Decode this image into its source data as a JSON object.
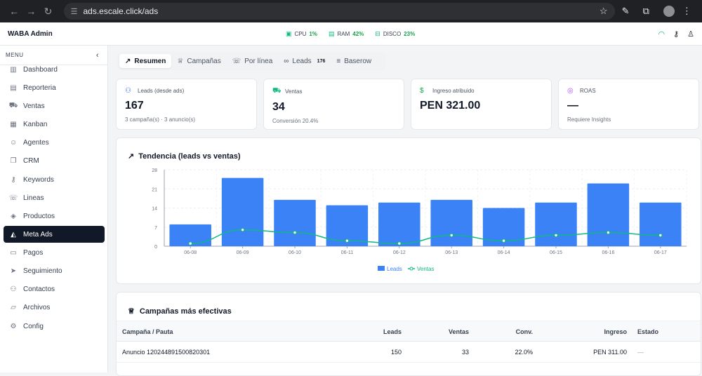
{
  "browser": {
    "url": "ads.escale.click/ads"
  },
  "app": {
    "title": "WABA Admin",
    "metrics": [
      {
        "label": "CPU",
        "value": "1%"
      },
      {
        "label": "RAM",
        "value": "42%"
      },
      {
        "label": "DISCO",
        "value": "23%"
      }
    ]
  },
  "sidebar": {
    "header": "MENU",
    "items": [
      {
        "label": "Dashboard",
        "icon": "bar-chart-icon",
        "glyph": "▥"
      },
      {
        "label": "Reporteria",
        "icon": "document-icon",
        "glyph": "▤"
      },
      {
        "label": "Ventas",
        "icon": "cart-icon",
        "glyph": "⛟"
      },
      {
        "label": "Kanban",
        "icon": "kanban-icon",
        "glyph": "▦"
      },
      {
        "label": "Agentes",
        "icon": "bot-icon",
        "glyph": "☺"
      },
      {
        "label": "CRM",
        "icon": "chat-icon",
        "glyph": "❐"
      },
      {
        "label": "Keywords",
        "icon": "key-icon",
        "glyph": "⚷"
      },
      {
        "label": "Lineas",
        "icon": "phone-icon",
        "glyph": "☏"
      },
      {
        "label": "Productos",
        "icon": "box-icon",
        "glyph": "◈"
      },
      {
        "label": "Meta Ads",
        "icon": "megaphone-icon",
        "glyph": "◭"
      },
      {
        "label": "Pagos",
        "icon": "card-icon",
        "glyph": "▭"
      },
      {
        "label": "Seguimiento",
        "icon": "send-icon",
        "glyph": "➤"
      },
      {
        "label": "Contactos",
        "icon": "users-icon",
        "glyph": "⚇"
      },
      {
        "label": "Archivos",
        "icon": "folder-icon",
        "glyph": "▱"
      },
      {
        "label": "Config",
        "icon": "gear-icon",
        "glyph": "⚙"
      }
    ],
    "active_index": 9
  },
  "tabs": [
    {
      "label": "Resumen",
      "icon": "trending-icon",
      "glyph": "↗"
    },
    {
      "label": "Campañas",
      "icon": "trophy-icon",
      "glyph": "♕"
    },
    {
      "label": "Por línea",
      "icon": "phone-icon",
      "glyph": "☏"
    },
    {
      "label": "Leads",
      "icon": "link-icon",
      "glyph": "∞",
      "count": "176"
    },
    {
      "label": "Baserow",
      "icon": "database-icon",
      "glyph": "≡"
    }
  ],
  "kpis": [
    {
      "label": "Leads (desde ads)",
      "value": "167",
      "sub": "3 campaña(s) · 3 anuncio(s)",
      "icon": "users-icon",
      "glyph": "⚇"
    },
    {
      "label": "Ventas",
      "value": "34",
      "sub": "Conversión 20.4%",
      "icon": "cart-icon",
      "glyph": "⛟"
    },
    {
      "label": "Ingreso atribuido",
      "value": "PEN 321.00",
      "sub": "",
      "icon": "dollar-icon",
      "glyph": "$"
    },
    {
      "label": "ROAS",
      "value": "—",
      "sub": "Requiere Insights",
      "icon": "target-icon",
      "glyph": "◎"
    }
  ],
  "chart_data": {
    "type": "bar",
    "title": "Tendencia (leads vs ventas)",
    "categories": [
      "06-08",
      "06-09",
      "06-10",
      "06-11",
      "06-12",
      "06-13",
      "06-14",
      "06-15",
      "06-16",
      "06-17"
    ],
    "series": [
      {
        "name": "Leads",
        "type": "bar",
        "color": "#3b82f6",
        "values": [
          8,
          25,
          17,
          15,
          16,
          17,
          14,
          16,
          23,
          16
        ]
      },
      {
        "name": "Ventas",
        "type": "line",
        "color": "#10b981",
        "values": [
          1,
          6,
          5,
          2,
          1,
          4,
          2,
          4,
          5,
          4
        ]
      }
    ],
    "y_ticks": [
      "0",
      "7",
      "14",
      "21",
      "28"
    ],
    "ylim": [
      0,
      28
    ],
    "grid": true,
    "legend": "bottom"
  },
  "campaigns": {
    "title": "Campañas más efectivas",
    "columns": [
      "Campaña / Pauta",
      "Leads",
      "Ventas",
      "Conv.",
      "Ingreso",
      "Estado"
    ],
    "rows": [
      [
        "Anuncio 120244891500820301",
        "150",
        "33",
        "22.0%",
        "PEN 311.00",
        "—"
      ]
    ]
  }
}
